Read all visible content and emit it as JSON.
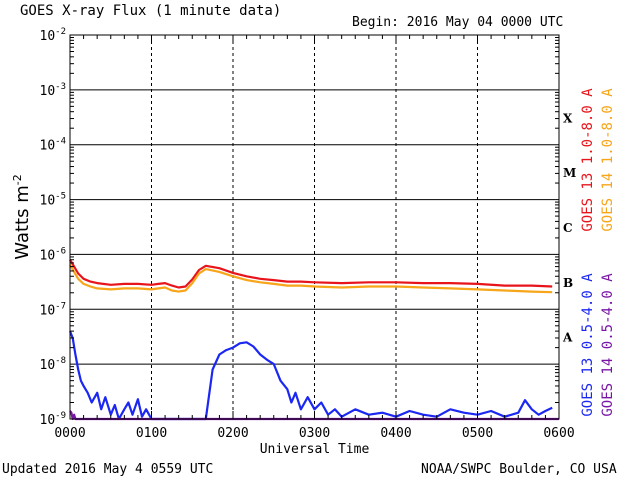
{
  "chart_data": {
    "type": "line",
    "title": "GOES X-ray Flux (1 minute data)",
    "begin_label": "Begin: 2016 May 04 0000 UTC",
    "xlabel": "Universal Time",
    "ylabel": "Watts m",
    "ylabel_superscript": "-2",
    "y_scale": "log",
    "ylim": [
      1e-09,
      0.01
    ],
    "xlim": [
      0,
      360
    ],
    "x_unit": "minutes after 2016-05-04 0000 UTC",
    "x_ticks": [
      "0000",
      "0100",
      "0200",
      "0300",
      "0400",
      "0500",
      "0600"
    ],
    "y_ticks": [
      {
        "base": "10",
        "exp": "-2"
      },
      {
        "base": "10",
        "exp": "-3"
      },
      {
        "base": "10",
        "exp": "-4"
      },
      {
        "base": "10",
        "exp": "-5"
      },
      {
        "base": "10",
        "exp": "-6"
      },
      {
        "base": "10",
        "exp": "-7"
      },
      {
        "base": "10",
        "exp": "-8"
      },
      {
        "base": "10",
        "exp": "-9"
      }
    ],
    "flare_classes": [
      {
        "label": "X",
        "low": 0.0001
      },
      {
        "label": "M",
        "low": 1e-05
      },
      {
        "label": "C",
        "low": 1e-06
      },
      {
        "label": "B",
        "low": 1e-07
      },
      {
        "label": "A",
        "low": 1e-08
      }
    ],
    "grid": true,
    "legend_position": "right, vertical",
    "series": [
      {
        "name": "GOES 13 1.0-8.0 A",
        "color": "#e8141b",
        "x": [
          0,
          3,
          6,
          10,
          15,
          20,
          30,
          40,
          50,
          60,
          65,
          70,
          75,
          80,
          85,
          90,
          95,
          100,
          110,
          120,
          130,
          140,
          150,
          160,
          170,
          180,
          200,
          220,
          240,
          260,
          280,
          300,
          320,
          340,
          355
        ],
        "y": [
          8e-07,
          6e-07,
          4.5e-07,
          3.6e-07,
          3.2e-07,
          3e-07,
          2.8e-07,
          2.9e-07,
          2.9e-07,
          2.8e-07,
          2.9e-07,
          3e-07,
          2.7e-07,
          2.5e-07,
          2.6e-07,
          3.5e-07,
          5.2e-07,
          6.2e-07,
          5.6e-07,
          4.6e-07,
          4e-07,
          3.6e-07,
          3.4e-07,
          3.2e-07,
          3.2e-07,
          3.1e-07,
          3e-07,
          3.1e-07,
          3.1e-07,
          3e-07,
          3e-07,
          2.9e-07,
          2.7e-07,
          2.7e-07,
          2.6e-07
        ]
      },
      {
        "name": "GOES 14 1.0-8.0 A",
        "color": "#f7a519",
        "x": [
          0,
          3,
          6,
          10,
          15,
          20,
          30,
          40,
          50,
          60,
          65,
          70,
          75,
          80,
          85,
          90,
          95,
          100,
          110,
          120,
          130,
          140,
          150,
          160,
          170,
          180,
          200,
          220,
          240,
          260,
          280,
          300,
          320,
          340,
          355
        ],
        "y": [
          6.5e-07,
          4.8e-07,
          3.6e-07,
          2.9e-07,
          2.6e-07,
          2.4e-07,
          2.3e-07,
          2.4e-07,
          2.4e-07,
          2.3e-07,
          2.4e-07,
          2.5e-07,
          2.2e-07,
          2.1e-07,
          2.2e-07,
          3e-07,
          4.5e-07,
          5.4e-07,
          4.8e-07,
          4e-07,
          3.4e-07,
          3.1e-07,
          2.9e-07,
          2.7e-07,
          2.7e-07,
          2.6e-07,
          2.5e-07,
          2.6e-07,
          2.6e-07,
          2.5e-07,
          2.4e-07,
          2.3e-07,
          2.2e-07,
          2.1e-07,
          2.05e-07
        ]
      },
      {
        "name": "GOES 13 0.5-4.0 A",
        "color": "#1b27f2",
        "x": [
          0,
          2,
          4,
          6,
          8,
          10,
          13,
          16,
          20,
          23,
          26,
          30,
          33,
          36,
          40,
          43,
          46,
          50,
          53,
          56,
          60,
          63,
          66,
          70,
          73,
          76,
          80,
          85,
          90,
          95,
          100,
          105,
          110,
          115,
          120,
          125,
          130,
          135,
          140,
          145,
          150,
          155,
          160,
          163,
          166,
          170,
          175,
          180,
          185,
          190,
          195,
          200,
          210,
          220,
          230,
          240,
          250,
          260,
          270,
          280,
          290,
          300,
          310,
          320,
          330,
          335,
          340,
          345,
          350,
          355
        ],
        "y": [
          4e-08,
          3e-08,
          1.5e-08,
          8e-09,
          5e-09,
          4e-09,
          3e-09,
          2e-09,
          3e-09,
          1.5e-09,
          2.5e-09,
          1.2e-09,
          1.8e-09,
          1e-09,
          1.5e-09,
          2e-09,
          1.2e-09,
          2.3e-09,
          1.1e-09,
          1.5e-09,
          1e-09,
          1e-09,
          1e-09,
          1e-09,
          1e-09,
          1e-09,
          1e-09,
          1e-09,
          1e-09,
          1e-09,
          1e-09,
          8e-09,
          1.5e-08,
          1.8e-08,
          2e-08,
          2.4e-08,
          2.5e-08,
          2.1e-08,
          1.5e-08,
          1.2e-08,
          1e-08,
          5e-09,
          3.5e-09,
          2e-09,
          3e-09,
          1.5e-09,
          2.5e-09,
          1.5e-09,
          2e-09,
          1.2e-09,
          1.5e-09,
          1.1e-09,
          1.5e-09,
          1.2e-09,
          1.3e-09,
          1.1e-09,
          1.4e-09,
          1.2e-09,
          1.1e-09,
          1.5e-09,
          1.3e-09,
          1.2e-09,
          1.4e-09,
          1.1e-09,
          1.3e-09,
          2.2e-09,
          1.5e-09,
          1.2e-09,
          1.4e-09,
          1.6e-09
        ]
      },
      {
        "name": "GOES 14 0.5-4.0 A",
        "color": "#7a14a6",
        "x": [
          0,
          1,
          2,
          3,
          4,
          6,
          360
        ],
        "y": [
          1.4e-09,
          1.3e-09,
          1e-09,
          1.2e-09,
          1e-09,
          1e-09,
          1e-09
        ]
      }
    ]
  },
  "footer": {
    "updated": "Updated 2016 May  4 0559 UTC",
    "source": "NOAA/SWPC Boulder, CO USA"
  }
}
